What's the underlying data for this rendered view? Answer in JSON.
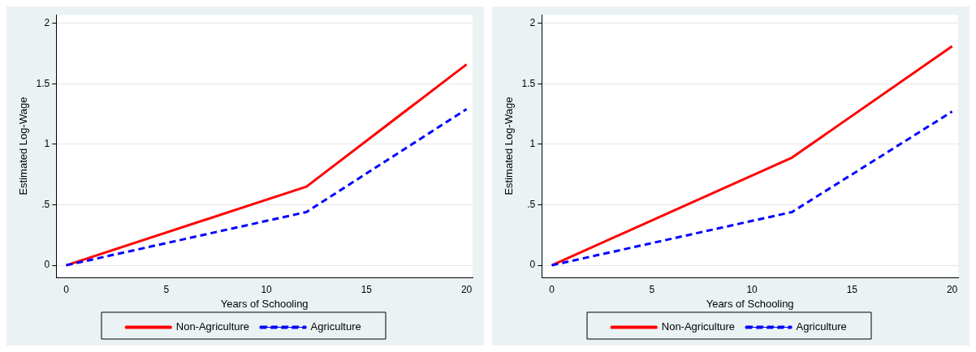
{
  "chart_data": [
    {
      "type": "line",
      "xlabel": "Years of Schooling",
      "ylabel": "Estimated Log-Wage",
      "x": [
        0,
        12,
        20
      ],
      "xlim": [
        -0.5,
        20.3
      ],
      "xticks": [
        0,
        5,
        10,
        15,
        20
      ],
      "ylim": [
        -0.1,
        2.07
      ],
      "yticks": [
        0,
        {
          "value": 0.5,
          "label": ".5"
        },
        1,
        1.5,
        2
      ],
      "grid": "y",
      "legend": "bottom",
      "marker": "none",
      "series": [
        {
          "name": "Non-Agriculture",
          "color": "#ff0000",
          "line_style": "solid",
          "values": [
            0,
            0.65,
            1.66
          ]
        },
        {
          "name": "Agriculture",
          "color": "#0000ff",
          "line_style": "dashed",
          "values": [
            0,
            0.44,
            1.29
          ]
        }
      ]
    },
    {
      "type": "line",
      "xlabel": "Years of Schooling",
      "ylabel": "Estimated Log-Wage",
      "x": [
        0,
        12,
        20
      ],
      "xlim": [
        -0.5,
        20.3
      ],
      "xticks": [
        0,
        5,
        10,
        15,
        20
      ],
      "ylim": [
        -0.1,
        2.07
      ],
      "yticks": [
        0,
        {
          "value": 0.5,
          "label": ".5"
        },
        1,
        1.5,
        2
      ],
      "grid": "y",
      "legend": "bottom",
      "marker": "none",
      "series": [
        {
          "name": "Non-Agriculture",
          "color": "#ff0000",
          "line_style": "solid",
          "values": [
            0,
            0.89,
            1.81
          ]
        },
        {
          "name": "Agriculture",
          "color": "#0000ff",
          "line_style": "dashed",
          "values": [
            0,
            0.44,
            1.27
          ]
        }
      ]
    }
  ]
}
